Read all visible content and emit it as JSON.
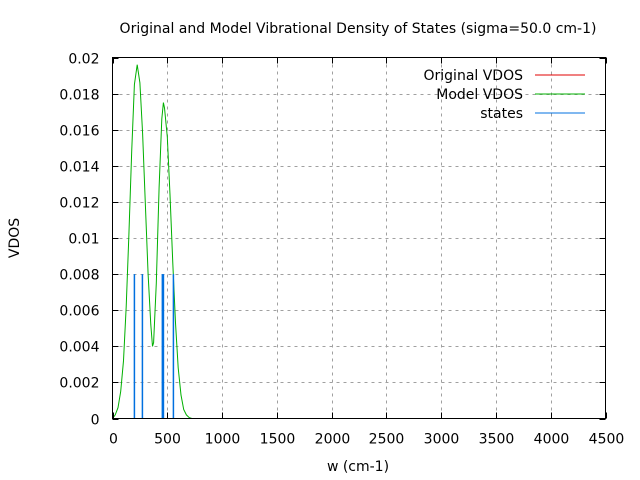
{
  "chart_data": {
    "type": "line",
    "title": "Original and Model Vibrational Density of States (sigma=50.0 cm-1)",
    "xlabel": "w (cm-1)",
    "ylabel": "VDOS",
    "xlim": [
      0,
      4500
    ],
    "ylim": [
      0,
      0.02
    ],
    "xticks": [
      "0",
      "500",
      "1000",
      "1500",
      "2000",
      "2500",
      "3000",
      "3500",
      "4000",
      "4500"
    ],
    "xtick_values": [
      0,
      500,
      1000,
      1500,
      2000,
      2500,
      3000,
      3500,
      4000,
      4500
    ],
    "yticks": [
      "0",
      "0.002",
      "0.004",
      "0.006",
      "0.008",
      "0.01",
      "0.012",
      "0.014",
      "0.016",
      "0.018",
      "0.02"
    ],
    "ytick_values": [
      0,
      0.002,
      0.004,
      0.006,
      0.008,
      0.01,
      0.012,
      0.014,
      0.016,
      0.018,
      0.02
    ],
    "grid": true,
    "legend_position": "top-right",
    "series": [
      {
        "name": "Original VDOS",
        "color": "#e00000",
        "kind": "line",
        "x": [],
        "y": []
      },
      {
        "name": "Model VDOS",
        "color": "#00b000",
        "kind": "line",
        "x": [
          0,
          25,
          50,
          75,
          100,
          125,
          150,
          175,
          200,
          225,
          250,
          275,
          300,
          325,
          350,
          365,
          375,
          400,
          425,
          450,
          465,
          475,
          500,
          525,
          550,
          575,
          600,
          625,
          650,
          675,
          700,
          725,
          750
        ],
        "y": [
          0.0,
          0.0002,
          0.0006,
          0.0015,
          0.0032,
          0.0062,
          0.0102,
          0.0148,
          0.0185,
          0.0196,
          0.0186,
          0.0158,
          0.0118,
          0.008,
          0.0052,
          0.004,
          0.0042,
          0.0075,
          0.0128,
          0.0166,
          0.0175,
          0.0172,
          0.0156,
          0.0124,
          0.0086,
          0.0053,
          0.0028,
          0.0013,
          0.0005,
          0.0002,
          5e-05,
          0.0,
          0.0
        ]
      },
      {
        "name": "states",
        "color": "#0070e0",
        "kind": "impulses",
        "x": [
          200,
          273,
          455,
          465,
          556
        ],
        "y": [
          0.008,
          0.008,
          0.008,
          0.008,
          0.008
        ]
      }
    ]
  }
}
